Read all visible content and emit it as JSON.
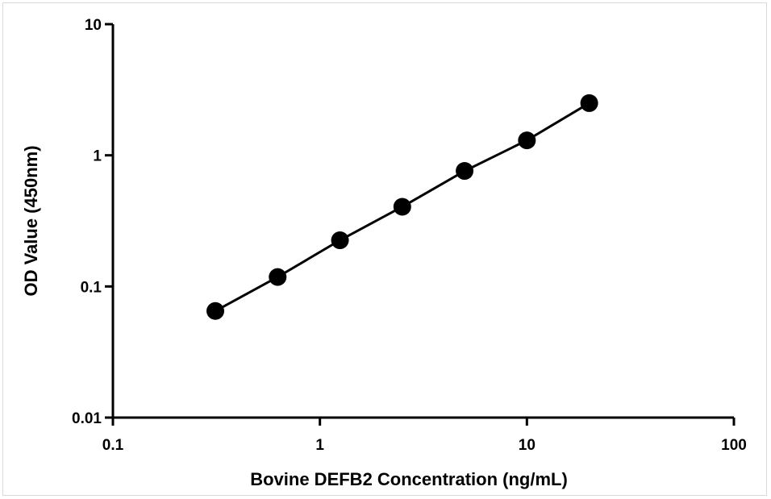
{
  "chart_data": {
    "type": "scatter",
    "xlabel": "Bovine DEFB2 Concentration (ng/mL)",
    "ylabel": "OD Value (450nm)",
    "x_scale": "log",
    "y_scale": "log",
    "xlim": [
      0.1,
      100
    ],
    "ylim": [
      0.01,
      10
    ],
    "x_ticks": [
      "0.1",
      "1",
      "10",
      "100"
    ],
    "y_ticks": [
      "0.01",
      "0.1",
      "1",
      "10"
    ],
    "grid": false,
    "legend": "none",
    "series": [
      {
        "x": [
          0.3125,
          0.625,
          1.25,
          2.5,
          5,
          10,
          20
        ],
        "y": [
          0.065,
          0.118,
          0.225,
          0.405,
          0.76,
          1.3,
          2.5
        ],
        "color": "#000000",
        "marker": "circle",
        "line": true
      }
    ]
  }
}
